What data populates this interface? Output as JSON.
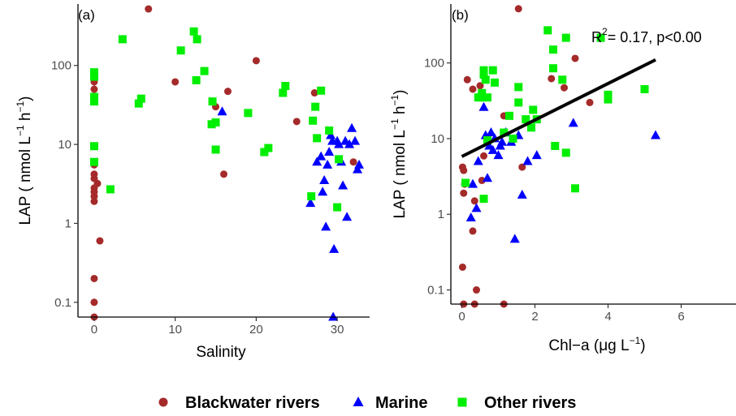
{
  "chart_data": [
    {
      "type": "scatter",
      "panel_label": "(a)",
      "xlabel": "Salinity",
      "ylabel": "LAP ( nmol L",
      "ylabel_sup1": "−1",
      "ylabel_mid": " h",
      "ylabel_sup2": "−1",
      "ylabel_end": ")",
      "xlim": [
        -2,
        34
      ],
      "ylim": [
        0.065,
        600
      ],
      "yscale": "log",
      "xticks": [
        0,
        10,
        20,
        30
      ],
      "xtick_labels": [
        "0",
        "10",
        "20",
        "30"
      ],
      "yticks": [
        0.1,
        1,
        10,
        100
      ],
      "ytick_labels": [
        "0.1",
        "1",
        "10",
        "100"
      ],
      "grid": false,
      "series": [
        {
          "name": "Blackwater rivers",
          "color": "#a52a2a",
          "marker": "circle",
          "points": [
            [
              0,
              62
            ],
            [
              0,
              50
            ],
            [
              0,
              40
            ],
            [
              0,
              5.5
            ],
            [
              0,
              4.2
            ],
            [
              0,
              3.7
            ],
            [
              0,
              2.8
            ],
            [
              0,
              2.5
            ],
            [
              0,
              2.2
            ],
            [
              0,
              1.9
            ],
            [
              0,
              0.2
            ],
            [
              0,
              0.1
            ],
            [
              0,
              0.065
            ],
            [
              0.4,
              3.2
            ],
            [
              0.7,
              0.6
            ],
            [
              6.7,
              520
            ],
            [
              10,
              62
            ],
            [
              15,
              30
            ],
            [
              16,
              4.2
            ],
            [
              16.5,
              47
            ],
            [
              20,
              115
            ],
            [
              25,
              19.5
            ],
            [
              27.2,
              45
            ],
            [
              32,
              6
            ]
          ]
        },
        {
          "name": "Marine",
          "color": "#0000ff",
          "marker": "triangle",
          "points": [
            [
              15.8,
              26
            ],
            [
              26.7,
              1.8
            ],
            [
              27.5,
              6
            ],
            [
              28,
              7
            ],
            [
              28.2,
              2.5
            ],
            [
              28.4,
              3.5
            ],
            [
              28.6,
              0.9
            ],
            [
              28.8,
              5.5
            ],
            [
              29,
              8
            ],
            [
              29.2,
              13
            ],
            [
              29.4,
              11
            ],
            [
              29.6,
              0.47
            ],
            [
              29.5,
              0.065
            ],
            [
              30,
              11
            ],
            [
              30.2,
              10
            ],
            [
              30.5,
              6
            ],
            [
              30.7,
              3
            ],
            [
              31,
              11
            ],
            [
              31.2,
              1.2
            ],
            [
              31.5,
              10
            ],
            [
              31.8,
              16
            ],
            [
              32.2,
              11
            ],
            [
              32.5,
              4.8
            ],
            [
              32.7,
              5.5
            ]
          ]
        },
        {
          "name": "Other rivers",
          "color": "#00ee00",
          "marker": "square",
          "points": [
            [
              0,
              82
            ],
            [
              0,
              72
            ],
            [
              0,
              40
            ],
            [
              0,
              35
            ],
            [
              0,
              9.5
            ],
            [
              0,
              6
            ],
            [
              2,
              2.7
            ],
            [
              3.5,
              215
            ],
            [
              5.5,
              33
            ],
            [
              5.8,
              38
            ],
            [
              10.7,
              155
            ],
            [
              12.3,
              270
            ],
            [
              12.7,
              215
            ],
            [
              12.6,
              65
            ],
            [
              13.6,
              85
            ],
            [
              14.6,
              35
            ],
            [
              14.5,
              18
            ],
            [
              15,
              19
            ],
            [
              15,
              8.6
            ],
            [
              19,
              25
            ],
            [
              21,
              8
            ],
            [
              21.5,
              9
            ],
            [
              23.3,
              45
            ],
            [
              23.6,
              55
            ],
            [
              26.8,
              2.2
            ],
            [
              27,
              20
            ],
            [
              27.3,
              30
            ],
            [
              27.5,
              12
            ],
            [
              28,
              48
            ],
            [
              29,
              15
            ],
            [
              30,
              1.6
            ],
            [
              30.2,
              6.5
            ]
          ]
        }
      ]
    },
    {
      "type": "scatter",
      "panel_label": "(b)",
      "xlabel": "Chl−a (μg L",
      "xlabel_sup": "−1",
      "xlabel_end": ")",
      "ylabel": "LAP ( nmol L",
      "ylabel_sup1": "−1",
      "ylabel_mid": " h",
      "ylabel_sup2": "−1",
      "ylabel_end": ")",
      "xlim": [
        -0.3,
        7.5
      ],
      "ylim": [
        0.065,
        600
      ],
      "yscale": "log",
      "xticks": [
        0,
        2,
        4,
        6
      ],
      "xtick_labels": [
        "0",
        "2",
        "4",
        "6"
      ],
      "yticks": [
        0.1,
        1,
        10,
        100
      ],
      "ytick_labels": [
        "0.1",
        "1",
        "10",
        "100"
      ],
      "grid": false,
      "annotation": {
        "prefix": "R",
        "sup": "2",
        "text": "= 0.17, p<0.00"
      },
      "fit_line": {
        "x": [
          0,
          5.3
        ],
        "y": [
          5.8,
          110
        ]
      },
      "series": [
        {
          "name": "Blackwater rivers",
          "color": "#a52a2a",
          "marker": "circle",
          "points": [
            [
              0.02,
              4.2
            ],
            [
              0.05,
              3.8
            ],
            [
              0.08,
              2.5
            ],
            [
              0.05,
              1.9
            ],
            [
              0.02,
              0.2
            ],
            [
              0.05,
              0.065
            ],
            [
              0.15,
              60
            ],
            [
              0.3,
              45
            ],
            [
              0.35,
              1.5
            ],
            [
              0.3,
              0.6
            ],
            [
              0.4,
              0.1
            ],
            [
              0.35,
              0.065
            ],
            [
              0.5,
              50
            ],
            [
              0.55,
              2.8
            ],
            [
              0.6,
              5.9
            ],
            [
              1.15,
              20
            ],
            [
              1.15,
              0.065
            ],
            [
              1.55,
              520
            ],
            [
              1.65,
              4.2
            ],
            [
              2.45,
              62
            ],
            [
              2.8,
              47
            ],
            [
              3.1,
              115
            ],
            [
              3.5,
              30
            ]
          ]
        },
        {
          "name": "Marine",
          "color": "#0000ff",
          "marker": "triangle",
          "points": [
            [
              0.25,
              0.9
            ],
            [
              0.3,
              2.5
            ],
            [
              0.4,
              1.2
            ],
            [
              0.45,
              5
            ],
            [
              0.6,
              26
            ],
            [
              0.65,
              11
            ],
            [
              0.7,
              3
            ],
            [
              0.75,
              8
            ],
            [
              0.8,
              12
            ],
            [
              0.85,
              7
            ],
            [
              0.9,
              10
            ],
            [
              1,
              6
            ],
            [
              1.05,
              8
            ],
            [
              1.1,
              9
            ],
            [
              1.2,
              12
            ],
            [
              1.35,
              9
            ],
            [
              1.45,
              0.47
            ],
            [
              1.55,
              11
            ],
            [
              1.65,
              1.8
            ],
            [
              1.8,
              5
            ],
            [
              2.05,
              6
            ],
            [
              3.05,
              16
            ],
            [
              5.3,
              11
            ]
          ]
        },
        {
          "name": "Other rivers",
          "color": "#00ee00",
          "marker": "square",
          "points": [
            [
              0.1,
              2.6
            ],
            [
              0.45,
              35
            ],
            [
              0.5,
              35
            ],
            [
              0.55,
              40
            ],
            [
              0.6,
              80
            ],
            [
              0.6,
              70
            ],
            [
              0.65,
              60
            ],
            [
              0.7,
              35
            ],
            [
              0.7,
              9.5
            ],
            [
              0.6,
              1.6
            ],
            [
              0.85,
              80
            ],
            [
              0.9,
              55
            ],
            [
              1.15,
              12
            ],
            [
              1.3,
              20
            ],
            [
              1.4,
              10
            ],
            [
              1.55,
              30
            ],
            [
              1.55,
              48
            ],
            [
              1.75,
              18
            ],
            [
              1.9,
              14
            ],
            [
              1.95,
              24
            ],
            [
              2.05,
              18
            ],
            [
              2.35,
              270
            ],
            [
              2.5,
              150
            ],
            [
              2.5,
              85
            ],
            [
              2.55,
              8
            ],
            [
              2.75,
              60
            ],
            [
              2.85,
              215
            ],
            [
              2.85,
              6.5
            ],
            [
              3.1,
              2.2
            ],
            [
              3.8,
              215
            ],
            [
              4,
              38
            ],
            [
              4,
              33
            ],
            [
              5,
              45
            ]
          ]
        }
      ]
    }
  ],
  "legend": {
    "position": "bottom",
    "items": [
      {
        "label": "Blackwater rivers",
        "color": "#a52a2a",
        "marker": "circle"
      },
      {
        "label": "Marine",
        "color": "#0000ff",
        "marker": "triangle"
      },
      {
        "label": "Other rivers",
        "color": "#00ee00",
        "marker": "square"
      }
    ]
  }
}
